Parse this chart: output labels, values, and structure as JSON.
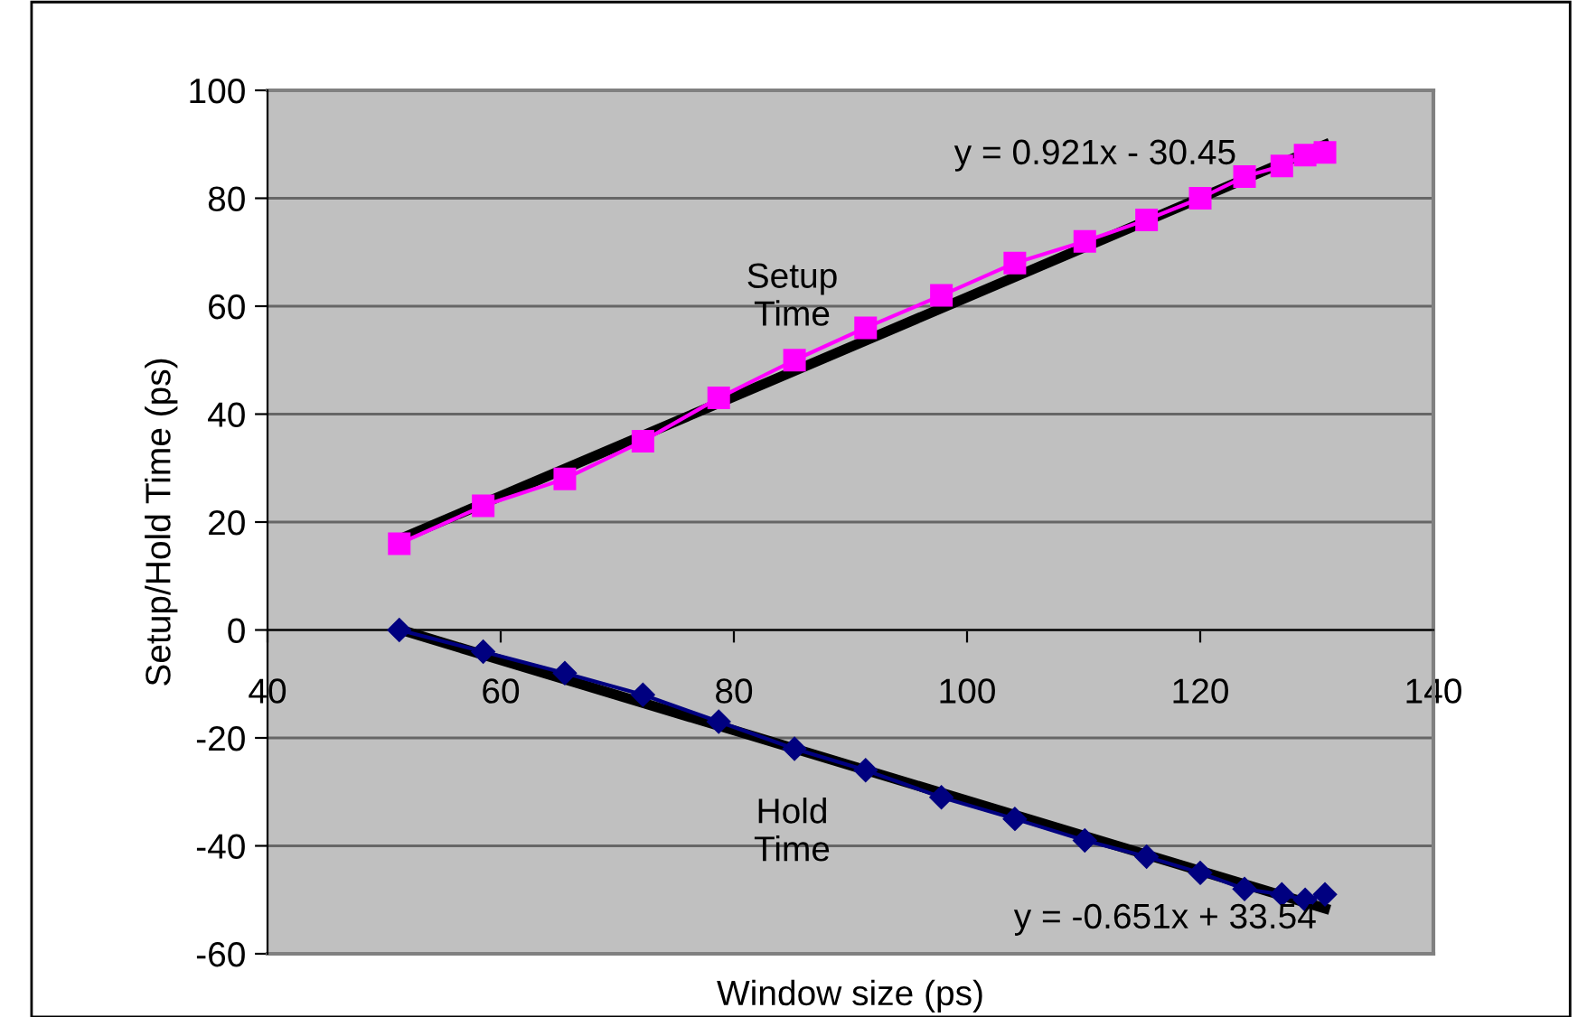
{
  "chart_data": {
    "type": "line",
    "xlabel": "Window size (ps)",
    "ylabel": "Setup/Hold Time (ps)",
    "xlim": [
      40,
      140
    ],
    "xticks": [
      40,
      60,
      80,
      100,
      120,
      140
    ],
    "ylim": [
      -60,
      100
    ],
    "yticks": [
      -60,
      -40,
      -20,
      0,
      20,
      40,
      60,
      80,
      100
    ],
    "grid": "y",
    "legend": false,
    "series": [
      {
        "marker": "square",
        "color": "#ff00ff",
        "x": [
          51.3,
          58.5,
          65.5,
          72.2,
          78.7,
          85.2,
          91.3,
          97.8,
          104.1,
          110.1,
          115.4,
          120.0,
          123.8,
          127.0,
          129.0,
          130.7
        ],
        "values": [
          16,
          23,
          28,
          35,
          43,
          50,
          56,
          62,
          68,
          72,
          76,
          80,
          84,
          86,
          88,
          88.5
        ]
      },
      {
        "marker": "diamond",
        "color": "#000080",
        "x": [
          51.3,
          58.5,
          65.5,
          72.2,
          78.7,
          85.2,
          91.3,
          97.8,
          104.1,
          110.1,
          115.4,
          120.0,
          123.8,
          127.0,
          129.0,
          130.7
        ],
        "values": [
          0,
          -4,
          -8,
          -12,
          -17,
          -22,
          -26,
          -31,
          -35,
          -39,
          -42,
          -45,
          -48,
          -49,
          -50,
          -49
        ]
      },
      {
        "marker": "none",
        "color": "#000000",
        "x": [
          51.3,
          130.7
        ],
        "values": [
          16.8,
          89.9
        ]
      },
      {
        "marker": "none",
        "color": "#000000",
        "x": [
          51.3,
          130.7
        ],
        "values": [
          0.1,
          -51.6
        ]
      }
    ],
    "annotations": [
      "y = 0.921x - 30.45",
      "Setup\nTime",
      "Hold\nTime",
      "y = -0.651x + 33.54"
    ]
  }
}
